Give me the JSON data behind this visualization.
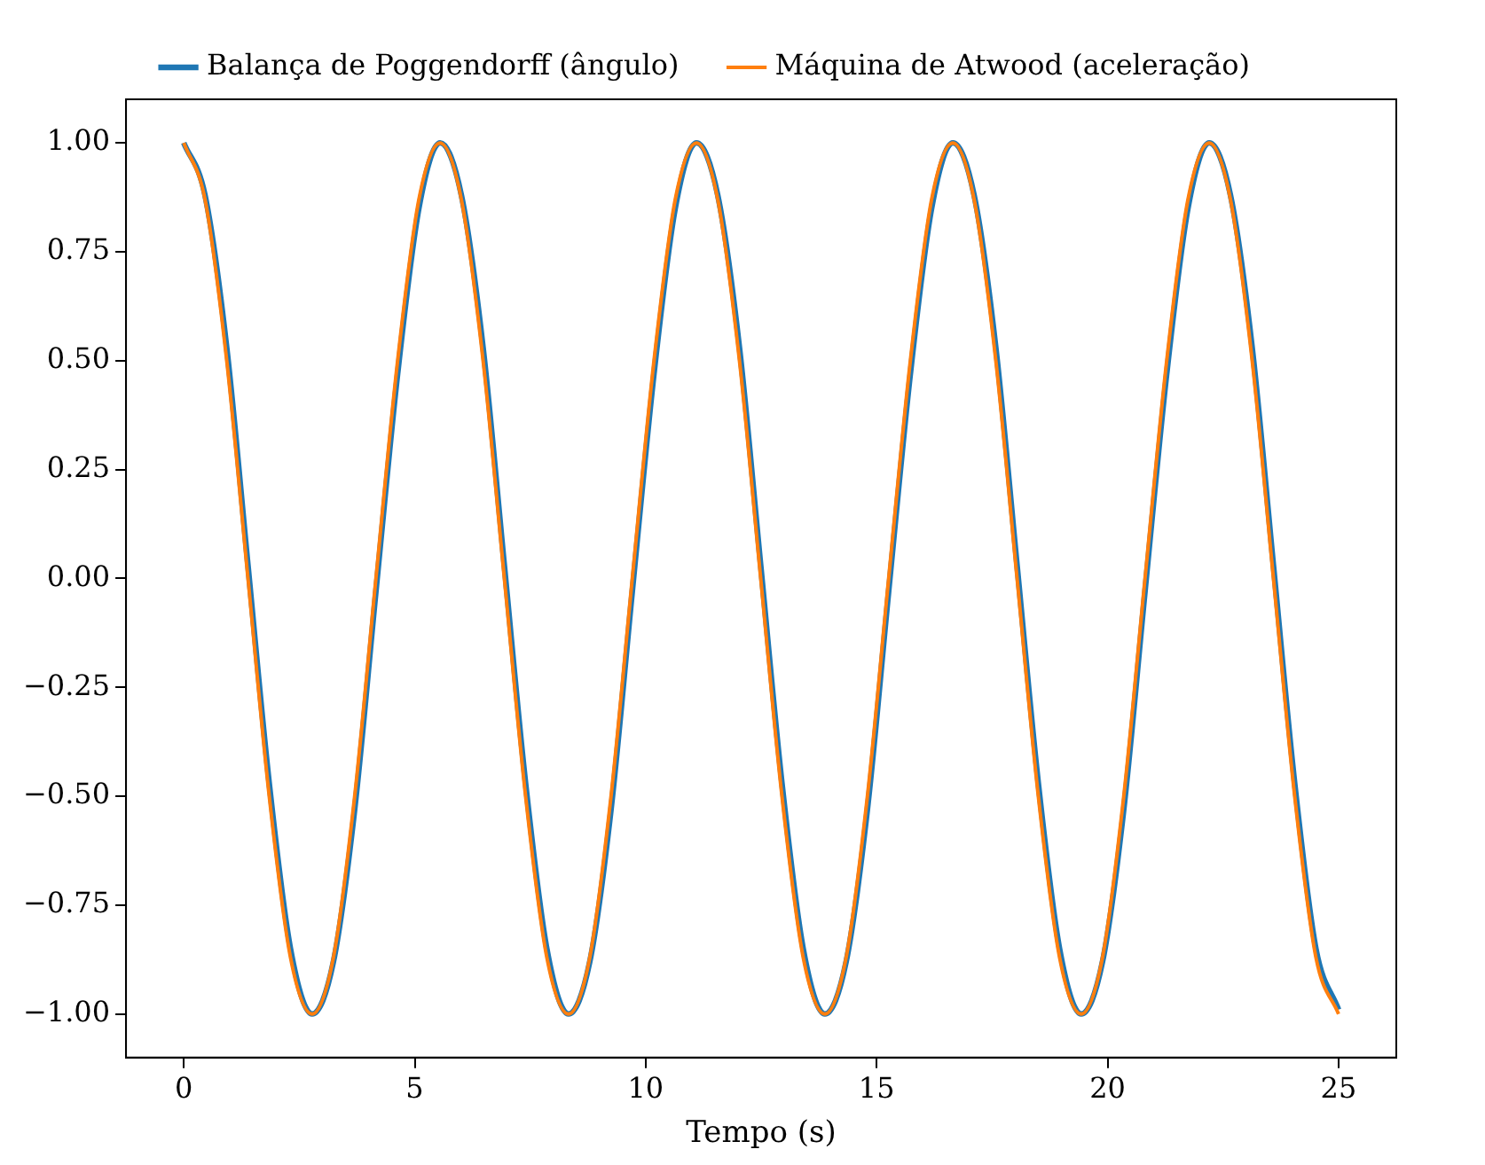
{
  "chart_data": {
    "type": "line",
    "xlabel": "Tempo (s)",
    "x": [
      0,
      0.46,
      0.93,
      1.39,
      1.85,
      2.31,
      2.78,
      3.24,
      3.7,
      4.16,
      4.63,
      5.09,
      5.55,
      6.01,
      6.48,
      6.94,
      7.4,
      7.86,
      8.33,
      8.79,
      9.25,
      9.71,
      10.18,
      10.64,
      11.1,
      11.56,
      12.03,
      12.49,
      12.95,
      13.41,
      13.88,
      14.34,
      14.8,
      15.26,
      15.73,
      16.19,
      16.65,
      17.11,
      17.58,
      18.04,
      18.5,
      18.96,
      19.43,
      19.89,
      20.35,
      20.81,
      21.28,
      21.74,
      22.2,
      22.66,
      23.13,
      23.59,
      24.05,
      24.51,
      25
    ],
    "series": [
      {
        "name": "Balança de Poggendorff (ângulo)",
        "color": "#1f77b4",
        "values": [
          1,
          0.88,
          0.53,
          0.03,
          -0.47,
          -0.85,
          -1,
          -0.88,
          -0.53,
          -0.03,
          0.47,
          0.85,
          1,
          0.88,
          0.53,
          0.03,
          -0.47,
          -0.85,
          -1,
          -0.88,
          -0.53,
          -0.03,
          0.47,
          0.85,
          1,
          0.88,
          0.53,
          0.03,
          -0.47,
          -0.85,
          -1,
          -0.88,
          -0.53,
          -0.03,
          0.47,
          0.85,
          1,
          0.88,
          0.53,
          0.03,
          -0.47,
          -0.85,
          -1,
          -0.88,
          -0.53,
          -0.03,
          0.47,
          0.85,
          1,
          0.88,
          0.53,
          0.03,
          -0.47,
          -0.85,
          -0.99
        ]
      },
      {
        "name": "Máquina de Atwood (aceleração)",
        "color": "#ff7f0e",
        "values": [
          1,
          0.87,
          0.5,
          0,
          -0.5,
          -0.87,
          -1,
          -0.87,
          -0.5,
          0,
          0.5,
          0.87,
          1,
          0.87,
          0.5,
          0,
          -0.5,
          -0.87,
          -1,
          -0.87,
          -0.5,
          0,
          0.5,
          0.87,
          1,
          0.87,
          0.5,
          0,
          -0.5,
          -0.87,
          -1,
          -0.87,
          -0.5,
          0,
          0.5,
          0.87,
          1,
          0.87,
          0.5,
          0,
          -0.5,
          -0.87,
          -1,
          -0.87,
          -0.5,
          0,
          0.5,
          0.87,
          1,
          0.87,
          0.5,
          0,
          -0.5,
          -0.87,
          -1
        ]
      }
    ],
    "xlim": [
      -1.25,
      26.25
    ],
    "ylim": [
      -1.1,
      1.1
    ],
    "xticks": [
      0,
      5,
      10,
      15,
      20,
      25
    ],
    "yticks": [
      {
        "value": -1,
        "label": "−1.00"
      },
      {
        "value": -0.75,
        "label": "−0.75"
      },
      {
        "value": -0.5,
        "label": "−0.50"
      },
      {
        "value": -0.25,
        "label": "−0.25"
      },
      {
        "value": 0,
        "label": "0.00"
      },
      {
        "value": 0.25,
        "label": "0.25"
      },
      {
        "value": 0.5,
        "label": "0.50"
      },
      {
        "value": 0.75,
        "label": "0.75"
      },
      {
        "value": 1,
        "label": "1.00"
      }
    ],
    "grid": false,
    "legend": "top",
    "marker": "none",
    "line_style": "solid"
  }
}
